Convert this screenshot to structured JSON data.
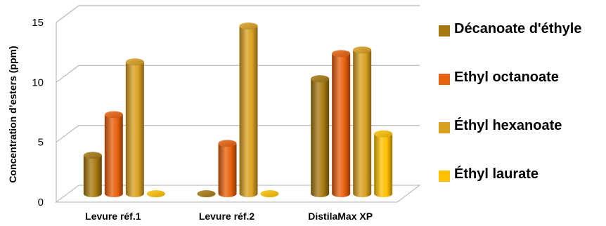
{
  "chart_data": {
    "type": "bar",
    "style": "3d-cylinder",
    "categories": [
      "Levure réf.1",
      "Levure réf.2",
      "DistilaMax XP"
    ],
    "series": [
      {
        "name": "Décanoate d'éthyle",
        "values": [
          3.2,
          0,
          9.6
        ],
        "color": "#A6780F"
      },
      {
        "name": "Ethyl octanoate",
        "values": [
          6.6,
          4.2,
          11.7
        ],
        "color": "#E8600C"
      },
      {
        "name": "Éthyl hexanoate",
        "values": [
          11.0,
          14.0,
          12.0
        ],
        "color": "#D9A020"
      },
      {
        "name": "Éthyl laurate",
        "values": [
          0,
          0,
          5.0
        ],
        "color": "#FFC000"
      }
    ],
    "ylabel": "Concentration d’esters (ppm)",
    "xlabel": "",
    "ylim": [
      0,
      15
    ],
    "yticks": [
      0,
      5,
      10,
      15
    ],
    "grid": true,
    "legend_position": "right"
  }
}
